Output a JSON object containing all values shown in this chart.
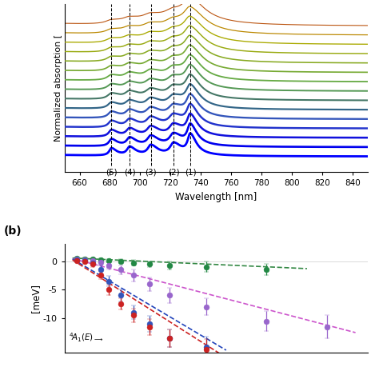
{
  "top_panel": {
    "xlabel": "Wavelength [nm]",
    "ylabel": "Normalized absorption [",
    "xlim": [
      650,
      850
    ],
    "xticks": [
      660,
      680,
      700,
      720,
      740,
      760,
      780,
      800,
      820,
      840
    ],
    "dashed_lines": [
      681,
      693,
      707,
      722,
      733
    ],
    "dashed_labels": [
      "(5)",
      "(4)",
      "(3)",
      "(2)",
      "(1)"
    ],
    "num_spectra": 15,
    "spectrum_colors": [
      "#0000ff",
      "#0000ee",
      "#1111dd",
      "#2233cc",
      "#3355bb",
      "#336688",
      "#447766",
      "#559955",
      "#66aa44",
      "#77aa33",
      "#88aa22",
      "#99aa11",
      "#aaaa00",
      "#bb8800",
      "#bb5511"
    ]
  },
  "bottom_panel": {
    "ylabel": "[meV]",
    "yticks": [
      0,
      -5,
      -10
    ],
    "xlim": [
      0,
      7.5
    ],
    "ylim": [
      -16,
      3
    ],
    "green_x": [
      0.3,
      0.5,
      0.7,
      0.9,
      1.1,
      1.4,
      1.7,
      2.1,
      2.6,
      3.5,
      5.0
    ],
    "green_y": [
      0.5,
      0.4,
      0.3,
      0.2,
      0.1,
      0.0,
      -0.3,
      -0.5,
      -0.8,
      -1.0,
      -1.5
    ],
    "green_ye": [
      0.2,
      0.2,
      0.25,
      0.3,
      0.3,
      0.4,
      0.5,
      0.5,
      0.7,
      0.9,
      1.0
    ],
    "green_color": "#228844",
    "green_dash": "#338844",
    "purple_x": [
      0.3,
      0.5,
      0.7,
      0.9,
      1.1,
      1.4,
      1.7,
      2.1,
      2.6,
      3.5,
      5.0,
      6.5
    ],
    "purple_y": [
      0.3,
      0.2,
      0.1,
      -0.2,
      -0.8,
      -1.5,
      -2.5,
      -4.0,
      -6.0,
      -8.0,
      -10.5,
      -11.5
    ],
    "purple_ye": [
      0.3,
      0.3,
      0.4,
      0.5,
      0.6,
      0.8,
      1.0,
      1.2,
      1.3,
      1.5,
      1.8,
      2.0
    ],
    "purple_color": "#9966cc",
    "purple_dash": "#cc55cc",
    "blue_x": [
      0.3,
      0.5,
      0.7,
      0.9,
      1.1,
      1.4,
      1.7,
      2.1,
      2.6,
      3.5
    ],
    "blue_y": [
      0.2,
      0.1,
      -0.3,
      -1.5,
      -3.5,
      -6.0,
      -9.0,
      -11.0,
      -13.5,
      -15.0
    ],
    "blue_ye": [
      0.3,
      0.3,
      0.5,
      0.7,
      0.9,
      1.0,
      1.2,
      1.4,
      1.6,
      1.8
    ],
    "blue_color": "#3355bb",
    "blue_dash": "#2244bb",
    "red_x": [
      0.3,
      0.5,
      0.7,
      0.9,
      1.1,
      1.4,
      1.7,
      2.1,
      2.6,
      3.5
    ],
    "red_y": [
      0.1,
      0.0,
      -0.5,
      -2.5,
      -5.0,
      -7.5,
      -9.5,
      -11.5,
      -13.5,
      -15.5
    ],
    "red_ye": [
      0.2,
      0.3,
      0.5,
      0.7,
      0.9,
      1.0,
      1.2,
      1.4,
      1.6,
      1.8
    ],
    "red_color": "#cc2222",
    "red_dash": "#cc2222"
  }
}
